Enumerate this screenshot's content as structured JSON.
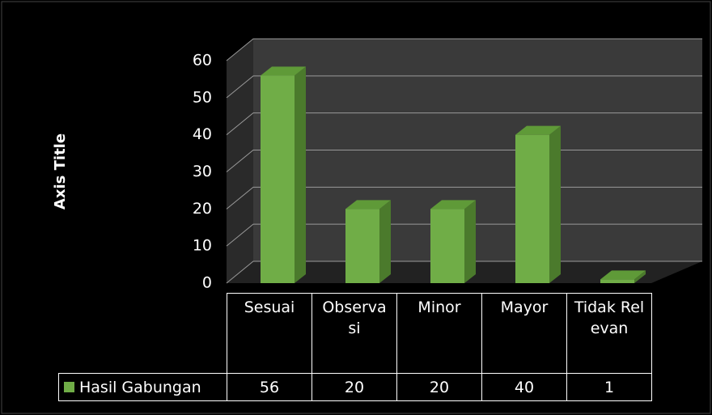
{
  "chart_data": {
    "type": "bar3d",
    "y_axis_label": "Axis Title",
    "categories": [
      "Sesuai",
      "Observasi",
      "Minor",
      "Mayor",
      "Tidak Relevan"
    ],
    "series": [
      {
        "name": "Hasil Gabungan",
        "color": "#70ad47",
        "values": [
          56,
          20,
          20,
          40,
          1
        ]
      }
    ],
    "ylim": [
      0,
      60
    ],
    "yticks": [
      0,
      10,
      20,
      30,
      40,
      50,
      60
    ],
    "grid": true,
    "data_table": true
  }
}
